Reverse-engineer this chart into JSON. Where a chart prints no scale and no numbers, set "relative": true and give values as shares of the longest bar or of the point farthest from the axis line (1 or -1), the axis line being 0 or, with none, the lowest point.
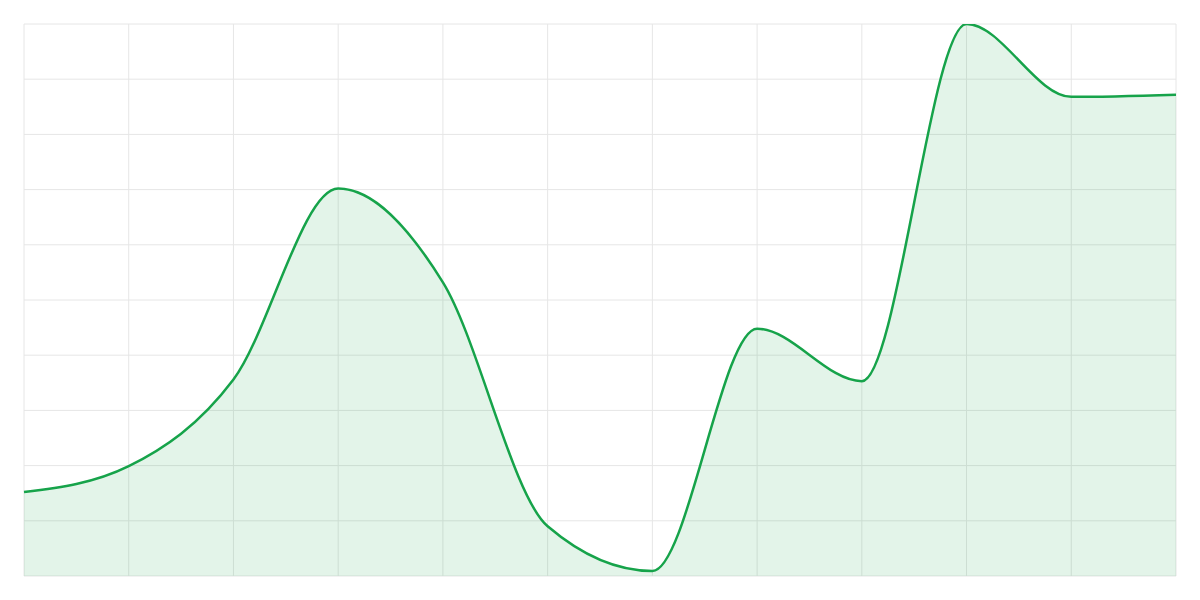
{
  "chart_data": {
    "type": "area",
    "categories": [
      null,
      null,
      null,
      null,
      null,
      null,
      null,
      null,
      null,
      null,
      null,
      null
    ],
    "values": [
      0.152,
      0.199,
      0.356,
      0.702,
      0.532,
      0.09,
      0.009,
      0.448,
      0.353,
      1,
      0.868,
      0.872
    ],
    "color": "#16a34a",
    "relative": true,
    "grid": true,
    "tick_labels": false
  }
}
